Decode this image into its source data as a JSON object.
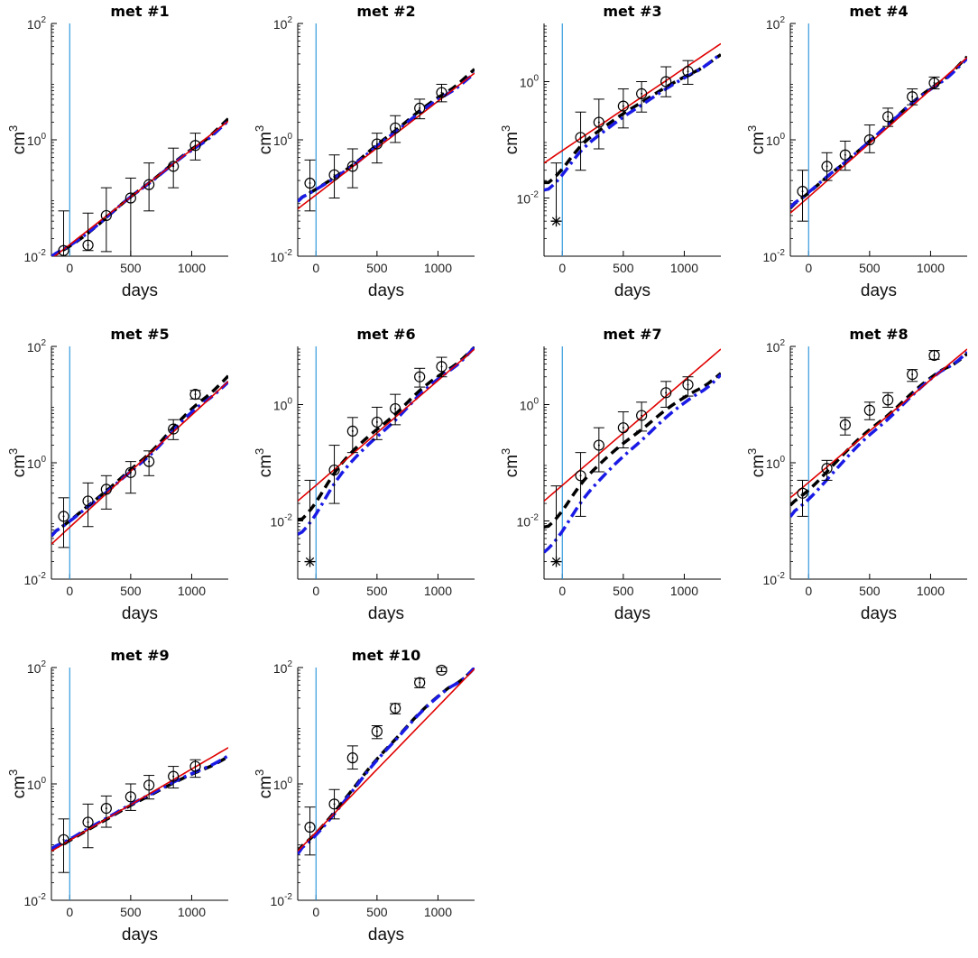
{
  "figure": {
    "panels": [
      {
        "title": "met #1",
        "y_tick_base": "10",
        "y_tick_exponents": [
          "-2",
          "0",
          "2"
        ]
      },
      {
        "title": "met #2",
        "y_tick_base": "10",
        "y_tick_exponents": [
          "-2",
          "0",
          "2"
        ]
      },
      {
        "title": "met #3",
        "y_tick_base": "10",
        "y_tick_exponents": [
          "-2",
          "0"
        ]
      },
      {
        "title": "met #4",
        "y_tick_base": "10",
        "y_tick_exponents": [
          "-2",
          "0",
          "2"
        ]
      },
      {
        "title": "met #5",
        "y_tick_base": "10",
        "y_tick_exponents": [
          "-2",
          "0",
          "2"
        ]
      },
      {
        "title": "met #6",
        "y_tick_base": "10",
        "y_tick_exponents": [
          "-2",
          "0"
        ]
      },
      {
        "title": "met #7",
        "y_tick_base": "10",
        "y_tick_exponents": [
          "-2",
          "0"
        ]
      },
      {
        "title": "met #8",
        "y_tick_base": "10",
        "y_tick_exponents": [
          "-2",
          "0",
          "2"
        ]
      },
      {
        "title": "met #9",
        "y_tick_base": "10",
        "y_tick_exponents": [
          "-2",
          "0",
          "2"
        ]
      },
      {
        "title": "met #10",
        "y_tick_base": "10",
        "y_tick_exponents": [
          "-2",
          "0",
          "2"
        ]
      }
    ],
    "x_tick_labels": [
      "0",
      "500",
      "1000"
    ],
    "x_label": "days",
    "y_label_base": "cm",
    "y_label_sup": "3",
    "colors": {
      "data_points": "#000000",
      "fit_linear": "#e00000",
      "fit_dashed_black": "#000000",
      "fit_dashdot_blue": "#1a1ae6",
      "reference_line": "#3399dd"
    }
  },
  "chart_data": [
    {
      "type": "scatter",
      "title": "met #1",
      "xlabel": "days",
      "ylabel": "cm3",
      "yscale": "log",
      "xlim": [
        -150,
        1300
      ],
      "ylim": [
        0.01,
        100
      ],
      "x": [
        -50,
        150,
        300,
        500,
        650,
        850,
        1030
      ],
      "y": [
        0.0125,
        0.0155,
        0.05,
        0.1,
        0.17,
        0.35,
        0.8
      ],
      "y_err_low": [
        0.01,
        0.0125,
        0.012,
        0.01,
        0.06,
        0.15,
        0.45
      ],
      "y_err_high": [
        0.06,
        0.055,
        0.15,
        0.22,
        0.4,
        0.72,
        1.3
      ],
      "vline_x": 0,
      "fits": {
        "linear": [
          0.009,
          2.1
        ],
        "black_dashed": [
          0.0085,
          2.4
        ],
        "blue_dashdot": [
          0.009,
          2.2
        ]
      }
    },
    {
      "type": "scatter",
      "title": "met #2",
      "xlabel": "days",
      "ylabel": "cm3",
      "yscale": "log",
      "xlim": [
        -150,
        1300
      ],
      "ylim": [
        0.01,
        100
      ],
      "x": [
        -50,
        150,
        300,
        500,
        650,
        850,
        1030
      ],
      "y": [
        0.18,
        0.25,
        0.35,
        0.85,
        1.6,
        3.5,
        6.5
      ],
      "y_err_low": [
        0.06,
        0.1,
        0.15,
        0.4,
        0.9,
        2.3,
        4.5
      ],
      "y_err_high": [
        0.45,
        0.55,
        0.7,
        1.3,
        2.6,
        5.0,
        9.0
      ],
      "vline_x": 0,
      "fits": {
        "linear": [
          0.065,
          14.0
        ],
        "black_dashed": [
          0.065,
          17.0
        ],
        "blue_dashdot": [
          0.065,
          14.5
        ]
      }
    },
    {
      "type": "scatter",
      "title": "met #3",
      "xlabel": "days",
      "ylabel": "cm3",
      "yscale": "log",
      "xlim": [
        -150,
        1300
      ],
      "ylim": [
        0.001,
        10
      ],
      "x": [
        -50,
        150,
        300,
        500,
        650,
        850,
        1030
      ],
      "y": [
        0.004,
        0.11,
        0.2,
        0.38,
        0.62,
        1.0,
        1.5
      ],
      "y_err_low": [
        0.004,
        0.03,
        0.07,
        0.16,
        0.3,
        0.55,
        0.9
      ],
      "y_err_high": [
        0.04,
        0.3,
        0.5,
        0.75,
        1.0,
        1.8,
        2.3
      ],
      "markers": [
        {
          "x": -50,
          "y": 0.004,
          "symbol": "asterisk"
        }
      ],
      "vline_x": 0,
      "fits": {
        "linear": [
          0.04,
          4.5
        ],
        "black_dashed": [
          0.03,
          3.0
        ],
        "blue_dashdot": [
          0.02,
          3.1
        ]
      }
    },
    {
      "type": "scatter",
      "title": "met #4",
      "xlabel": "days",
      "ylabel": "cm3",
      "yscale": "log",
      "xlim": [
        -150,
        1300
      ],
      "ylim": [
        0.01,
        100
      ],
      "x": [
        -50,
        150,
        300,
        500,
        650,
        850,
        1030
      ],
      "y": [
        0.13,
        0.35,
        0.55,
        1.0,
        2.5,
        5.5,
        9.5
      ],
      "y_err_low": [
        0.04,
        0.2,
        0.3,
        0.6,
        1.7,
        4.0,
        7.5
      ],
      "y_err_high": [
        0.3,
        0.6,
        0.95,
        1.8,
        3.5,
        7.5,
        12.0
      ],
      "vline_x": 0,
      "fits": {
        "linear": [
          0.055,
          26.0
        ],
        "black_dashed": [
          0.05,
          28.0
        ],
        "blue_dashdot": [
          0.052,
          26.0
        ]
      }
    },
    {
      "type": "scatter",
      "title": "met #5",
      "xlabel": "days",
      "ylabel": "cm3",
      "yscale": "log",
      "xlim": [
        -150,
        1300
      ],
      "ylim": [
        0.01,
        100
      ],
      "x": [
        -50,
        150,
        300,
        500,
        650,
        850,
        1030
      ],
      "y": [
        0.12,
        0.22,
        0.35,
        0.68,
        1.05,
        3.8,
        15.0
      ],
      "y_err_low": [
        0.035,
        0.08,
        0.16,
        0.3,
        0.6,
        2.5,
        12.5
      ],
      "y_err_high": [
        0.25,
        0.45,
        0.6,
        1.05,
        1.6,
        5.5,
        17.5
      ],
      "vline_x": 0,
      "fits": {
        "linear": [
          0.04,
          25.0
        ],
        "black_dashed": [
          0.04,
          32.0
        ],
        "blue_dashdot": [
          0.04,
          25.0
        ]
      }
    },
    {
      "type": "scatter",
      "title": "met #6",
      "xlabel": "days",
      "ylabel": "cm3",
      "yscale": "log",
      "xlim": [
        -150,
        1300
      ],
      "ylim": [
        0.001,
        10
      ],
      "x": [
        -50,
        150,
        300,
        500,
        650,
        850,
        1030
      ],
      "y": [
        0.002,
        0.075,
        0.35,
        0.5,
        0.85,
        3.0,
        4.5
      ],
      "y_err_low": [
        0.002,
        0.02,
        0.15,
        0.25,
        0.45,
        2.0,
        3.0
      ],
      "y_err_high": [
        0.05,
        0.2,
        0.6,
        0.9,
        1.5,
        4.2,
        6.5
      ],
      "markers": [
        {
          "x": -50,
          "y": 0.002,
          "symbol": "asterisk"
        }
      ],
      "vline_x": 0,
      "fits": {
        "linear": [
          0.022,
          9.0
        ],
        "black_dashed": [
          0.018,
          10.0
        ],
        "blue_dashdot": [
          0.008,
          10.0
        ]
      }
    },
    {
      "type": "scatter",
      "title": "met #7",
      "xlabel": "days",
      "ylabel": "cm3",
      "yscale": "log",
      "xlim": [
        -150,
        1300
      ],
      "ylim": [
        0.001,
        10
      ],
      "x": [
        -50,
        150,
        300,
        500,
        650,
        850,
        1030
      ],
      "y": [
        0.002,
        0.06,
        0.2,
        0.4,
        0.65,
        1.6,
        2.2
      ],
      "y_err_low": [
        0.002,
        0.012,
        0.07,
        0.18,
        0.35,
        0.9,
        1.4
      ],
      "y_err_high": [
        0.04,
        0.15,
        0.4,
        0.75,
        1.1,
        2.5,
        3.0
      ],
      "markers": [
        {
          "x": -50,
          "y": 0.002,
          "symbol": "asterisk"
        }
      ],
      "vline_x": 0,
      "fits": {
        "linear": [
          0.022,
          9.0
        ],
        "black_dashed": [
          0.012,
          3.5
        ],
        "blue_dashdot": [
          0.003,
          3.3
        ]
      }
    },
    {
      "type": "scatter",
      "title": "met #8",
      "xlabel": "days",
      "ylabel": "cm3",
      "yscale": "log",
      "xlim": [
        -150,
        1300
      ],
      "ylim": [
        0.01,
        100
      ],
      "x": [
        -50,
        150,
        300,
        500,
        650,
        850,
        1030
      ],
      "y": [
        0.3,
        0.8,
        4.5,
        8.0,
        12.0,
        33.0,
        70.0
      ],
      "y_err_low": [
        0.12,
        0.5,
        3.0,
        5.5,
        9.0,
        25.0,
        60.0
      ],
      "y_err_high": [
        0.5,
        1.1,
        6.0,
        11.0,
        16.0,
        40.0,
        85.0
      ],
      "vline_x": 0,
      "fits": {
        "linear": [
          0.25,
          90.0
        ],
        "black_dashed": [
          0.15,
          75.0
        ],
        "blue_dashdot": [
          0.08,
          80.0
        ]
      }
    },
    {
      "type": "scatter",
      "title": "met #9",
      "xlabel": "days",
      "ylabel": "cm3",
      "yscale": "log",
      "xlim": [
        -150,
        1300
      ],
      "ylim": [
        0.01,
        100
      ],
      "x": [
        -50,
        150,
        300,
        500,
        650,
        850,
        1030
      ],
      "y": [
        0.11,
        0.22,
        0.38,
        0.6,
        0.95,
        1.35,
        2.0
      ],
      "y_err_low": [
        0.03,
        0.08,
        0.18,
        0.35,
        0.55,
        0.85,
        1.3
      ],
      "y_err_high": [
        0.25,
        0.45,
        0.62,
        1.0,
        1.4,
        2.0,
        2.6
      ],
      "vline_x": 0,
      "fits": {
        "linear": [
          0.07,
          4.2
        ],
        "black_dashed": [
          0.06,
          3.0
        ],
        "blue_dashdot": [
          0.065,
          3.1
        ]
      }
    },
    {
      "type": "scatter",
      "title": "met #10",
      "xlabel": "days",
      "ylabel": "cm3",
      "yscale": "log",
      "xlim": [
        -150,
        1300
      ],
      "ylim": [
        0.01,
        100
      ],
      "x": [
        -50,
        150,
        300,
        500,
        650,
        850,
        1030
      ],
      "y": [
        0.18,
        0.45,
        2.8,
        8.0,
        20.0,
        55.0,
        90.0
      ],
      "y_err_low": [
        0.06,
        0.25,
        1.8,
        6.0,
        16.0,
        45.0,
        85.0
      ],
      "y_err_high": [
        0.4,
        0.8,
        4.5,
        10.0,
        24.0,
        65.0,
        100.0
      ],
      "vline_x": 0,
      "fits": {
        "linear": [
          0.07,
          95.0
        ],
        "black_dashed": [
          0.045,
          100.0
        ],
        "blue_dashdot": [
          0.04,
          100.0
        ]
      }
    }
  ]
}
